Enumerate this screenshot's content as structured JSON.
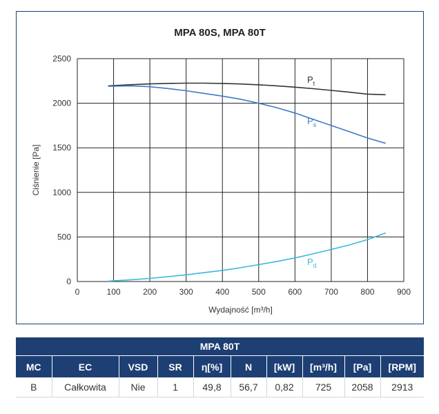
{
  "chart_data": {
    "type": "line",
    "title": "MPA 80S, MPA 80T",
    "xlabel": "Wydajność [m³/h]",
    "ylabel": "Ciśnienie [Pa]",
    "xlim": [
      0,
      900
    ],
    "ylim": [
      0,
      2500
    ],
    "xticks": [
      "0",
      "100",
      "200",
      "300",
      "400",
      "500",
      "600",
      "700",
      "800",
      "900"
    ],
    "yticks": [
      "0",
      "500",
      "1000",
      "1500",
      "2000",
      "2500"
    ],
    "grid": true,
    "series": [
      {
        "name": "Pt",
        "label_main": "P",
        "label_sub": "t",
        "color": "#333333",
        "x": [
          85,
          150,
          200,
          250,
          300,
          350,
          400,
          450,
          500,
          550,
          600,
          650,
          700,
          750,
          800,
          850
        ],
        "y": [
          2195,
          2208,
          2217,
          2222,
          2225,
          2225,
          2222,
          2216,
          2207,
          2195,
          2180,
          2163,
          2144,
          2124,
          2102,
          2095
        ]
      },
      {
        "name": "Ps",
        "label_main": "P",
        "label_sub": "s",
        "color": "#3a7bc8",
        "x": [
          85,
          150,
          200,
          250,
          300,
          350,
          400,
          450,
          500,
          550,
          600,
          650,
          700,
          750,
          800,
          850
        ],
        "y": [
          2190,
          2195,
          2185,
          2165,
          2140,
          2110,
          2080,
          2045,
          2000,
          1950,
          1890,
          1820,
          1750,
          1680,
          1610,
          1550
        ]
      },
      {
        "name": "Pd",
        "label_main": "P",
        "label_sub": "d",
        "color": "#3ab6e0",
        "x": [
          85,
          150,
          200,
          250,
          300,
          350,
          400,
          450,
          500,
          550,
          600,
          650,
          700,
          750,
          800,
          850
        ],
        "y": [
          5,
          20,
          35,
          55,
          75,
          100,
          125,
          155,
          190,
          225,
          265,
          310,
          360,
          410,
          470,
          545
        ]
      }
    ]
  },
  "table": {
    "title": "MPA 80T",
    "headers": [
      "MC",
      "EC",
      "VSD",
      "SR",
      "η[%]",
      "N",
      "[kW]",
      "[m³/h]",
      "[Pa]",
      "[RPM]"
    ],
    "row": [
      "B",
      "Całkowita",
      "Nie",
      "1",
      "49,8",
      "56,7",
      "0,82",
      "725",
      "2058",
      "2913"
    ]
  }
}
